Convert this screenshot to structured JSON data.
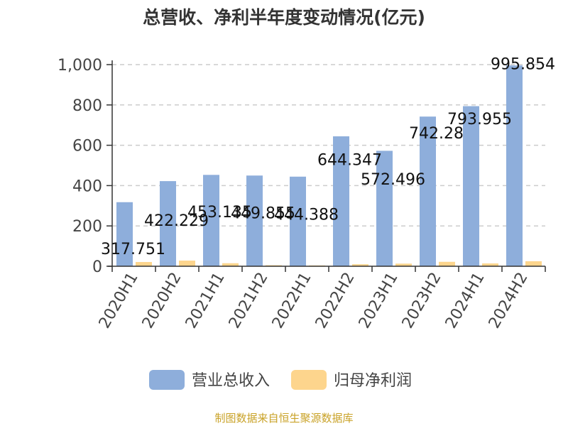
{
  "chart_data": {
    "type": "bar",
    "title": "总营收、净利半年度变动情况(亿元)",
    "categories": [
      "2020H1",
      "2020H2",
      "2021H1",
      "2021H2",
      "2022H1",
      "2022H2",
      "2023H1",
      "2023H2",
      "2024H1",
      "2024H2"
    ],
    "series": [
      {
        "name": "营业总收入",
        "color": "#8eaedb",
        "values": [
          317.751,
          422.229,
          453.135,
          449.855,
          444.388,
          644.347,
          572.496,
          742.28,
          793.955,
          995.854
        ]
      },
      {
        "name": "归母净利润",
        "color": "#fdd58d",
        "values": [
          21,
          28,
          15,
          5,
          4,
          10,
          13,
          22,
          14,
          25
        ]
      }
    ],
    "data_labels": [
      "317.751",
      "422.229",
      "453.135",
      "449.855",
      "444.388",
      "644.347",
      "572.496",
      "742.28",
      "793.955",
      "995.854"
    ],
    "y_ticks": [
      "0",
      "200",
      "400",
      "600",
      "800",
      "1,000"
    ],
    "ylim": [
      0,
      1000
    ],
    "xlabel": "",
    "ylabel": "",
    "grid": true,
    "legend_position": "bottom"
  },
  "source_text": "制图数据来自恒生聚源数据库"
}
